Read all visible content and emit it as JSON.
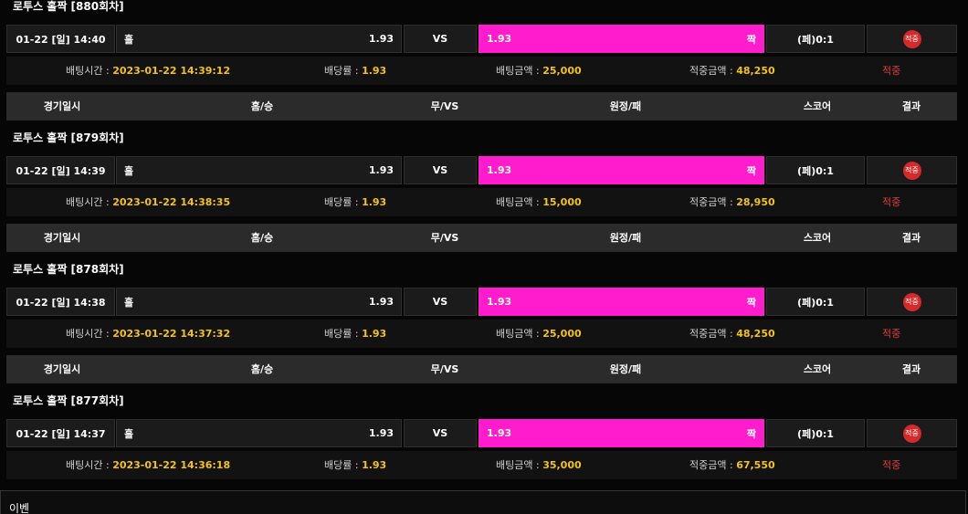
{
  "table_header": [
    "경기일시",
    "홈/승",
    "무/VS",
    "원정/패",
    "스코어",
    "결과"
  ],
  "labels": {
    "bet_time": "배팅시간 :",
    "odds": "배당률 :",
    "amount": "배팅금액 :",
    "win": "적중금액 :"
  },
  "rounds": [
    {
      "title": "로투스 홀짝 [880회차]",
      "date": "01-22 [일] 14:40",
      "home": "홀",
      "home_odds": "1.93",
      "vs": "VS",
      "away_odds": "1.93",
      "away": "짝",
      "score": "(페)0:1",
      "result": "적중",
      "bet_time": "2023-01-22 14:39:12",
      "odds": "1.93",
      "amount": "25,000",
      "win": "48,250",
      "status": "적중"
    },
    {
      "title": "로투스 홀짝 [879회차]",
      "date": "01-22 [일] 14:39",
      "home": "홀",
      "home_odds": "1.93",
      "vs": "VS",
      "away_odds": "1.93",
      "away": "짝",
      "score": "(페)0:1",
      "result": "적중",
      "bet_time": "2023-01-22 14:38:35",
      "odds": "1.93",
      "amount": "15,000",
      "win": "28,950",
      "status": "적중"
    },
    {
      "title": "로투스 홀짝 [878회차]",
      "date": "01-22 [일] 14:38",
      "home": "홀",
      "home_odds": "1.93",
      "vs": "VS",
      "away_odds": "1.93",
      "away": "짝",
      "score": "(페)0:1",
      "result": "적중",
      "bet_time": "2023-01-22 14:37:32",
      "odds": "1.93",
      "amount": "25,000",
      "win": "48,250",
      "status": "적중"
    },
    {
      "title": "로투스 홀짝 [877회차]",
      "date": "01-22 [일] 14:37",
      "home": "홀",
      "home_odds": "1.93",
      "vs": "VS",
      "away_odds": "1.93",
      "away": "짝",
      "score": "(페)0:1",
      "result": "적중",
      "bet_time": "2023-01-22 14:36:18",
      "odds": "1.93",
      "amount": "35,000",
      "win": "67,550",
      "status": "적중"
    }
  ],
  "footer": "이벤"
}
